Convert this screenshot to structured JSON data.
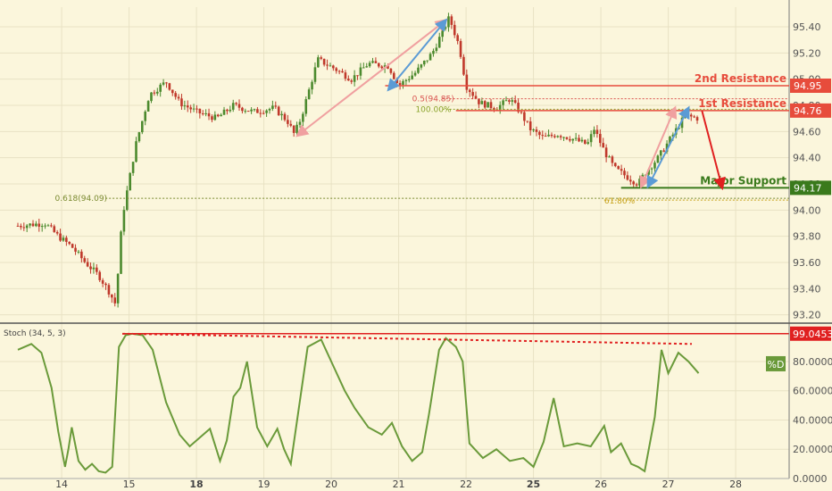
{
  "chart_data": [
    {
      "type": "candlestick",
      "panel": "price",
      "ylim": [
        93.15,
        95.55
      ],
      "y_ticks": [
        "95.40",
        "95.20",
        "95.00",
        "94.80",
        "94.60",
        "94.40",
        "94.20",
        "94.00",
        "93.80",
        "93.60",
        "93.40",
        "93.20"
      ],
      "x_ticks": [
        {
          "label": "14",
          "bold": false
        },
        {
          "label": "15",
          "bold": false
        },
        {
          "label": "18",
          "bold": true
        },
        {
          "label": "19",
          "bold": false
        },
        {
          "label": "20",
          "bold": false
        },
        {
          "label": "21",
          "bold": false
        },
        {
          "label": "22",
          "bold": false
        },
        {
          "label": "25",
          "bold": true
        },
        {
          "label": "26",
          "bold": false
        },
        {
          "label": "27",
          "bold": false
        },
        {
          "label": "28",
          "bold": false
        }
      ],
      "close_path": [
        [
          0,
          93.88
        ],
        [
          0.4,
          93.9
        ],
        [
          0.6,
          93.8
        ],
        [
          0.8,
          93.72
        ],
        [
          1.0,
          93.6
        ],
        [
          1.2,
          93.5
        ],
        [
          1.35,
          93.38
        ],
        [
          1.45,
          93.28
        ],
        [
          1.55,
          93.95
        ],
        [
          1.75,
          94.5
        ],
        [
          1.95,
          94.88
        ],
        [
          2.2,
          94.98
        ],
        [
          2.4,
          94.82
        ],
        [
          2.65,
          94.75
        ],
        [
          2.95,
          94.7
        ],
        [
          3.2,
          94.8
        ],
        [
          3.5,
          94.75
        ],
        [
          3.8,
          94.78
        ],
        [
          4.0,
          94.68
        ],
        [
          4.1,
          94.58
        ],
        [
          4.2,
          94.7
        ],
        [
          4.45,
          95.15
        ],
        [
          4.7,
          95.08
        ],
        [
          4.95,
          95.0
        ],
        [
          5.2,
          95.12
        ],
        [
          5.5,
          95.1
        ],
        [
          5.65,
          94.95
        ],
        [
          5.9,
          95.05
        ],
        [
          6.15,
          95.2
        ],
        [
          6.4,
          95.47
        ],
        [
          6.55,
          95.25
        ],
        [
          6.65,
          94.95
        ],
        [
          6.85,
          94.82
        ],
        [
          7.1,
          94.78
        ],
        [
          7.3,
          94.85
        ],
        [
          7.45,
          94.75
        ],
        [
          7.6,
          94.62
        ],
        [
          7.8,
          94.55
        ],
        [
          8.0,
          94.58
        ],
        [
          8.2,
          94.55
        ],
        [
          8.45,
          94.5
        ],
        [
          8.55,
          94.62
        ],
        [
          8.7,
          94.45
        ],
        [
          8.85,
          94.32
        ],
        [
          9.05,
          94.25
        ],
        [
          9.2,
          94.2
        ],
        [
          9.3,
          94.28
        ],
        [
          9.5,
          94.4
        ],
        [
          9.75,
          94.6
        ],
        [
          9.9,
          94.72
        ],
        [
          10.1,
          94.7
        ]
      ],
      "levels": [
        {
          "name": "2nd Resistance",
          "value": 94.95,
          "tag": "94.95",
          "color": "#e74c3c"
        },
        {
          "name": "1st Resistance",
          "value": 94.76,
          "tag": "94.76",
          "color": "#e74c3c"
        },
        {
          "name": "Major Support",
          "value": 94.17,
          "tag": "94.17",
          "color": "#3a7a1c"
        }
      ],
      "fib_labels": [
        "0.5(94.85)",
        "100.00%",
        "0.618(94.09)",
        "61.80%"
      ],
      "fib_levels": [
        {
          "label": "0.5(94.85)",
          "value": 94.85,
          "color": "#d9534f"
        },
        {
          "label": "100.00%",
          "value": 94.77,
          "color": "#8aa32a"
        },
        {
          "label": "0.618(94.09)",
          "value": 94.09,
          "color": "#7a8a30"
        },
        {
          "label": "61.80%",
          "value": 94.09,
          "color": "#c7a21a"
        }
      ],
      "arrows": [
        {
          "kind": "projection",
          "from": [
            4.15,
            94.57
          ],
          "to": [
            6.35,
            95.45
          ],
          "color": "#f0a0a0"
        },
        {
          "kind": "projection",
          "from": [
            5.5,
            94.92
          ],
          "to": [
            6.35,
            95.45
          ],
          "color": "#5b9bd5"
        },
        {
          "kind": "projection",
          "from": [
            9.25,
            94.18
          ],
          "to": [
            9.75,
            94.78
          ],
          "color": "#f0a0a0"
        },
        {
          "kind": "projection",
          "from": [
            9.35,
            94.18
          ],
          "to": [
            9.95,
            94.78
          ],
          "color": "#5b9bd5"
        },
        {
          "kind": "down",
          "from": [
            10.15,
            94.76
          ],
          "to": [
            10.45,
            94.17
          ],
          "color": "#e02020"
        }
      ]
    },
    {
      "type": "line",
      "panel": "indicator",
      "title": "Stoch (34, 5, 3)",
      "series": [
        {
          "name": "%D",
          "color": "#6a9a3a"
        }
      ],
      "ylim": [
        0,
        105
      ],
      "y_ticks": [
        "80.0000",
        "60.0000",
        "40.0000",
        "20.0000",
        "0.0000"
      ],
      "tag_value": "99.0453",
      "x": [
        0,
        0.2,
        0.35,
        0.5,
        0.6,
        0.7,
        0.75,
        0.8,
        0.9,
        1.0,
        1.1,
        1.2,
        1.3,
        1.4,
        1.5,
        1.6,
        1.7,
        1.85,
        2.0,
        2.2,
        2.4,
        2.55,
        2.7,
        2.85,
        3.0,
        3.1,
        3.2,
        3.3,
        3.4,
        3.55,
        3.7,
        3.85,
        3.95,
        4.05,
        4.15,
        4.3,
        4.5,
        4.7,
        4.85,
        5.0,
        5.2,
        5.4,
        5.55,
        5.7,
        5.85,
        6.0,
        6.1,
        6.25,
        6.35,
        6.5,
        6.6,
        6.7,
        6.9,
        7.1,
        7.3,
        7.5,
        7.65,
        7.8,
        7.95,
        8.1,
        8.3,
        8.5,
        8.7,
        8.8,
        8.95,
        9.1,
        9.2,
        9.3,
        9.45,
        9.55,
        9.65,
        9.8,
        9.95,
        10.1
      ],
      "values": [
        88,
        92,
        86,
        62,
        32,
        8,
        20,
        35,
        12,
        6,
        10,
        5,
        4,
        8,
        90,
        98,
        99,
        98,
        88,
        52,
        30,
        22,
        28,
        34,
        12,
        26,
        56,
        62,
        80,
        35,
        22,
        34,
        20,
        10,
        42,
        90,
        95,
        75,
        60,
        48,
        35,
        30,
        38,
        22,
        12,
        18,
        44,
        88,
        96,
        90,
        80,
        24,
        14,
        20,
        12,
        14,
        8,
        25,
        55,
        22,
        24,
        22,
        36,
        18,
        24,
        10,
        8,
        5,
        42,
        88,
        72,
        86,
        80,
        72
      ]
    }
  ],
  "legend": {
    "series_tag": "%D"
  }
}
